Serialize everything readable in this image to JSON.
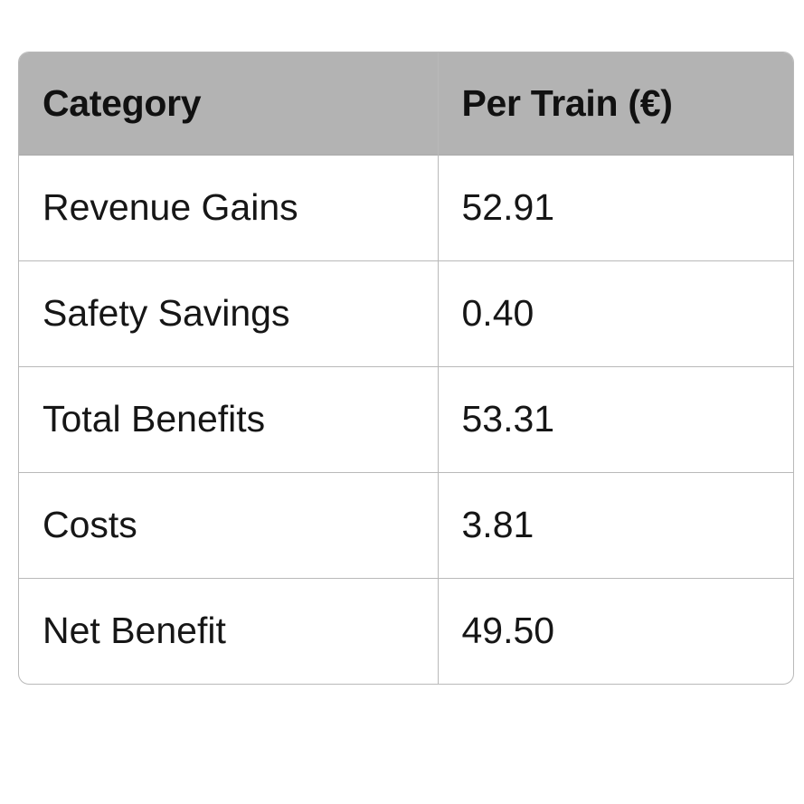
{
  "table": {
    "headers": [
      "Category",
      "Per Train (€)"
    ],
    "rows": [
      [
        "Revenue Gains",
        "52.91"
      ],
      [
        "Safety Savings",
        "0.40"
      ],
      [
        "Total Benefits",
        "53.31"
      ],
      [
        "Costs",
        "3.81"
      ],
      [
        "Net Benefit",
        "49.50"
      ]
    ]
  },
  "colors": {
    "header_background": "#b3b3b3",
    "border": "#b9b9b9",
    "text": "#111111"
  }
}
